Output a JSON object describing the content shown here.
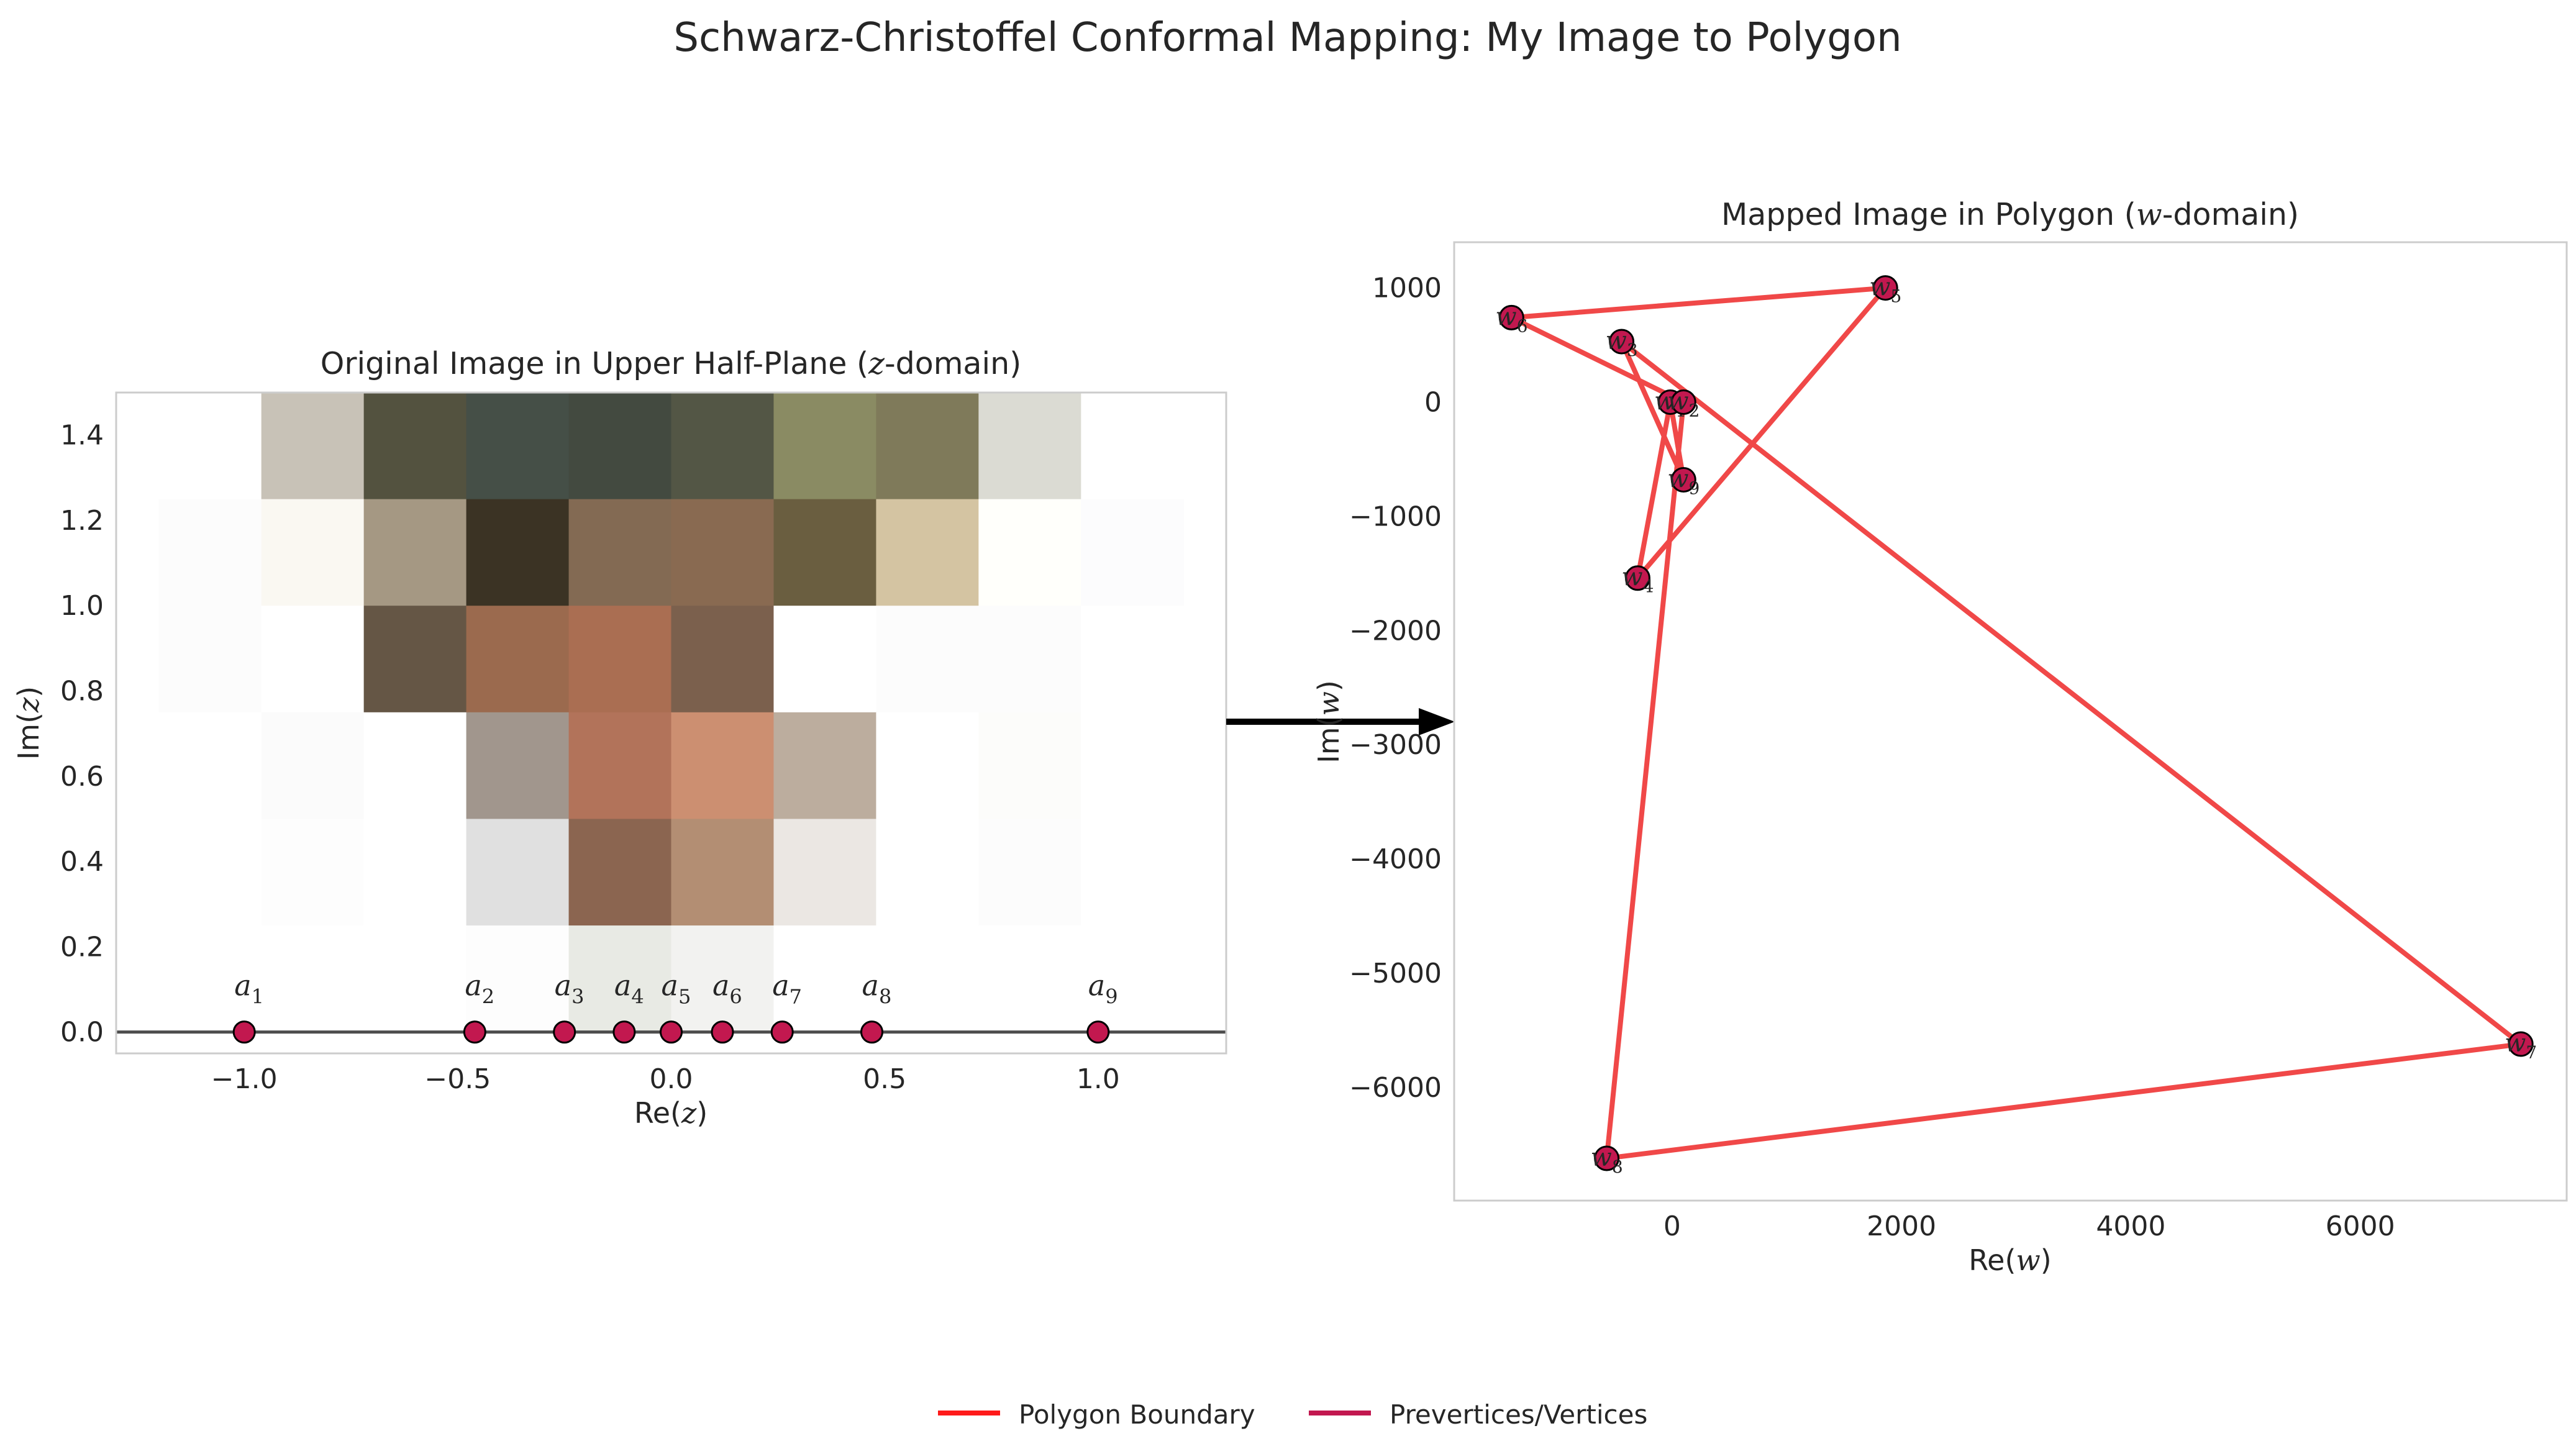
{
  "figure": {
    "title": "Schwarz-Christoffel Conformal Mapping: My Image to Polygon",
    "legend": {
      "placement": "bottom-center",
      "items": [
        {
          "label": "Polygon Boundary",
          "color": "#ff1a1a"
        },
        {
          "label": "Prevertices/Vertices",
          "color": "#c2184f"
        }
      ]
    },
    "arrow_color": "#000000"
  },
  "chart_data": [
    {
      "type": "heatmap",
      "title": "Original Image in Upper Half-Plane (z-domain)",
      "xlabel": "Re(z)",
      "ylabel": "Im(z)",
      "xlim": [
        -1.3,
        1.3
      ],
      "ylim": [
        -0.05,
        1.5
      ],
      "xticks": [
        -1.0,
        -0.5,
        0.0,
        0.5,
        1.0
      ],
      "xtick_labels": [
        "−1.0",
        "−0.5",
        "0.0",
        "0.5",
        "1.0"
      ],
      "yticks": [
        0.0,
        0.2,
        0.4,
        0.6,
        0.8,
        1.0,
        1.2,
        1.4
      ],
      "ytick_labels": [
        "0.0",
        "0.2",
        "0.4",
        "0.6",
        "0.8",
        "1.0",
        "1.2",
        "1.4"
      ],
      "grid": false,
      "image": {
        "extent": [
          -1.2,
          1.2,
          0.0,
          1.5
        ],
        "rows": 6,
        "cols": 10,
        "colors": [
          [
            "#ffffff",
            "#c8c2b7",
            "#53523f",
            "#454f47",
            "#434a40",
            "#535645",
            "#8a8b63",
            "#7f7a5a",
            "#dbdbd3",
            "#ffffff"
          ],
          [
            "#fcfcfc",
            "#faf8f2",
            "#a59883",
            "#3b3324",
            "#836a53",
            "#896a51",
            "#6a5e40",
            "#d4c4a2",
            "#fffffb",
            "#fcfcfd"
          ],
          [
            "#fcfcfc",
            "#ffffff",
            "#655645",
            "#9b6a4e",
            "#aa6e52",
            "#7b604d",
            "#ffffff",
            "#fcfcfc",
            "#fcfcfc",
            "#ffffff"
          ],
          [
            "#ffffff",
            "#fbfbfb",
            "#ffffff",
            "#a1968d",
            "#b2735a",
            "#cc8f71",
            "#bcad9e",
            "#ffffff",
            "#fcfcfa",
            "#ffffff"
          ],
          [
            "#ffffff",
            "#fdfdfd",
            "#ffffff",
            "#e0e0e0",
            "#8b6550",
            "#b38e73",
            "#ebe7e3",
            "#ffffff",
            "#fcfcfc",
            "#ffffff"
          ],
          [
            "#ffffff",
            "#ffffff",
            "#ffffff",
            "#fdfdfd",
            "#e8eae4",
            "#f2f2f0",
            "#ffffff",
            "#ffffff",
            "#ffffff",
            "#ffffff"
          ]
        ]
      },
      "real_axis_color": "#4d4d4d",
      "prevertices": {
        "x": [
          -1.0,
          -0.46,
          -0.25,
          -0.11,
          0.0,
          0.12,
          0.26,
          0.47,
          1.0
        ],
        "y": [
          0,
          0,
          0,
          0,
          0,
          0,
          0,
          0,
          0
        ],
        "labels": [
          "a1",
          "a2",
          "a3",
          "a4",
          "a5",
          "a6",
          "a7",
          "a8",
          "a9"
        ],
        "color": "#c2184f"
      }
    },
    {
      "type": "line",
      "title": "Mapped Image in Polygon (w-domain)",
      "xlabel": "Re(w)",
      "ylabel": "Im(w)",
      "xlim": [
        -1900,
        7800
      ],
      "ylim": [
        -6990,
        1400
      ],
      "xticks": [
        0,
        2000,
        4000,
        6000
      ],
      "xtick_labels": [
        "0",
        "2000",
        "4000",
        "6000"
      ],
      "yticks": [
        1000,
        0,
        -1000,
        -2000,
        -3000,
        -4000,
        -5000,
        -6000
      ],
      "ytick_labels": [
        "1000",
        "0",
        "−1000",
        "−2000",
        "−3000",
        "−4000",
        "−5000",
        "−6000"
      ],
      "grid": false,
      "series": [
        {
          "role": "boundary",
          "color": "#f04848",
          "x": [
            -1400,
            1860,
            -300,
            -15,
            100,
            -440,
            7400,
            -570,
            100,
            -1400
          ],
          "y": [
            740,
            1000,
            -1540,
            0,
            -680,
            530,
            -5620,
            -6620,
            0,
            740
          ]
        }
      ],
      "vertices": {
        "x": [
          -15,
          100,
          -440,
          -300,
          1860,
          -1400,
          7400,
          -570,
          100
        ],
        "y": [
          0,
          0,
          530,
          -1540,
          1000,
          740,
          -5620,
          -6620,
          -680
        ],
        "labels": [
          "w1",
          "w2",
          "w3",
          "w4",
          "w5",
          "w6",
          "w7",
          "w8",
          "w9"
        ],
        "color": "#c2184f"
      }
    }
  ]
}
